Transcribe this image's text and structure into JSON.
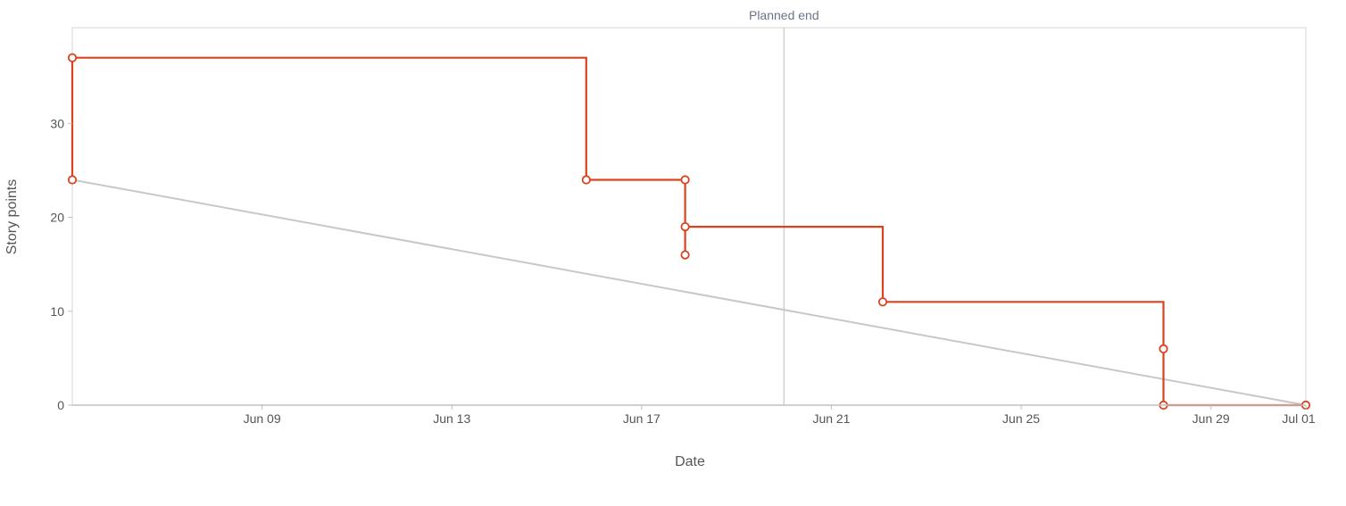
{
  "chart_data": {
    "type": "line",
    "xlabel": "Date",
    "ylabel": "Story points",
    "x_axis": {
      "type": "date",
      "range": [
        "2021-06-05",
        "2021-07-01"
      ],
      "ticks": [
        {
          "date": "2021-06-09",
          "label": "Jun 09"
        },
        {
          "date": "2021-06-13",
          "label": "Jun 13"
        },
        {
          "date": "2021-06-17",
          "label": "Jun 17"
        },
        {
          "date": "2021-06-21",
          "label": "Jun 21"
        },
        {
          "date": "2021-06-25",
          "label": "Jun 25"
        },
        {
          "date": "2021-06-29",
          "label": "Jun 29"
        },
        {
          "date": "2021-07-01",
          "label": "Jul 01"
        }
      ]
    },
    "y_axis": {
      "range": [
        0,
        40
      ],
      "ticks": [
        {
          "value": 0,
          "label": "0"
        },
        {
          "value": 10,
          "label": "10"
        },
        {
          "value": 20,
          "label": "20"
        },
        {
          "value": 30,
          "label": "30"
        }
      ]
    },
    "grid": false,
    "colors": {
      "actual": "#d9431e",
      "guideline": "#c8c8c8",
      "marker_line": "#c8c8c8",
      "axis": "#c0c0c0"
    },
    "reference_line": {
      "date": "2021-06-20",
      "label": "Planned end"
    },
    "series": [
      {
        "style": "step",
        "points": [
          {
            "x": "2021-06-05",
            "y": 24
          },
          {
            "x": "2021-06-05",
            "y": 37
          },
          {
            "x": "2021-06-15 20:00",
            "y": 24
          },
          {
            "x": "2021-06-17 22:00",
            "y": 24
          },
          {
            "x": "2021-06-17 22:00",
            "y": 16
          },
          {
            "x": "2021-06-17 22:00",
            "y": 19
          },
          {
            "x": "2021-06-22 02:00",
            "y": 11
          },
          {
            "x": "2021-06-28",
            "y": 6
          },
          {
            "x": "2021-06-28",
            "y": 0
          },
          {
            "x": "2021-07-01",
            "y": 0
          }
        ]
      },
      {
        "style": "straight",
        "points": [
          {
            "x": "2021-06-05",
            "y": 24
          },
          {
            "x": "2021-07-01",
            "y": 0
          }
        ]
      }
    ]
  }
}
